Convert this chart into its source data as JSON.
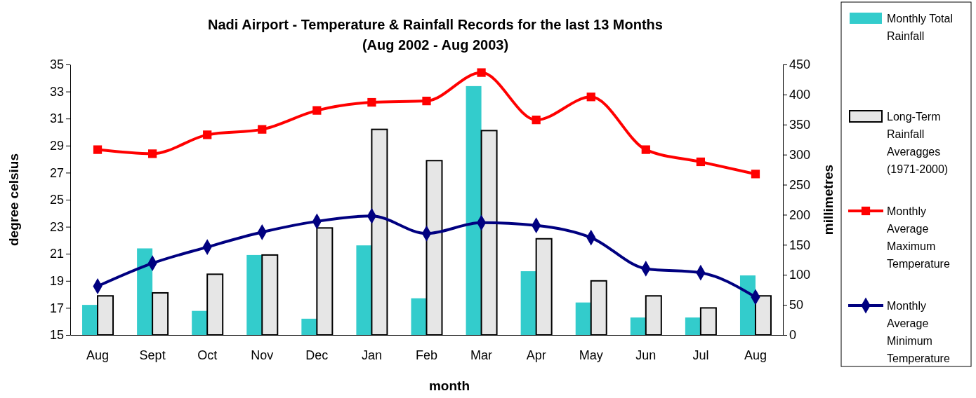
{
  "chart_data": {
    "type": "bar",
    "title": "Nadi Airport - Temperature & Rainfall Records for the last 13 Months\n(Aug 2002 - Aug 2003)",
    "xlabel": "month",
    "ylabel": "degree celsius",
    "y2label": "millimetres",
    "categories": [
      "Aug",
      "Sept",
      "Oct",
      "Nov",
      "Dec",
      "Jan",
      "Feb",
      "Mar",
      "Apr",
      "May",
      "Jun",
      "Jul",
      "Aug"
    ],
    "ylim": [
      15,
      35
    ],
    "yticks": [
      15,
      17,
      19,
      21,
      23,
      25,
      27,
      29,
      31,
      33,
      35
    ],
    "y2lim": [
      0,
      450
    ],
    "y2ticks": [
      0,
      50,
      100,
      150,
      200,
      250,
      300,
      350,
      400,
      450
    ],
    "legend": "right",
    "grid": false,
    "series": [
      {
        "name": "Monthly Total Rainfall",
        "axis": "y2",
        "color": "#33cccc",
        "values": [
          50,
          144,
          40,
          133,
          27,
          149,
          61,
          414,
          106,
          54,
          29,
          29,
          99
        ]
      },
      {
        "name": "Long-Term Rainfall Averagges (1971-2000)",
        "axis": "y2",
        "color": "#e6e6e6",
        "values": [
          65,
          70,
          101,
          133,
          178,
          342,
          290,
          340,
          160,
          90,
          65,
          45,
          65
        ]
      },
      {
        "name": "Monthly Average Maximum Temperature",
        "type": "line",
        "color": "#ff0000",
        "marker": "square",
        "values": [
          28.7,
          28.4,
          29.8,
          30.2,
          31.6,
          32.2,
          32.3,
          34.4,
          30.9,
          32.6,
          28.7,
          27.8,
          26.9
        ]
      },
      {
        "name": "Monthly Average Minimum Temperature",
        "type": "line",
        "color": "#000080",
        "marker": "diamond",
        "values": [
          18.6,
          20.3,
          21.5,
          22.6,
          23.4,
          23.8,
          22.5,
          23.3,
          23.1,
          22.2,
          19.9,
          19.6,
          17.8
        ]
      }
    ]
  }
}
